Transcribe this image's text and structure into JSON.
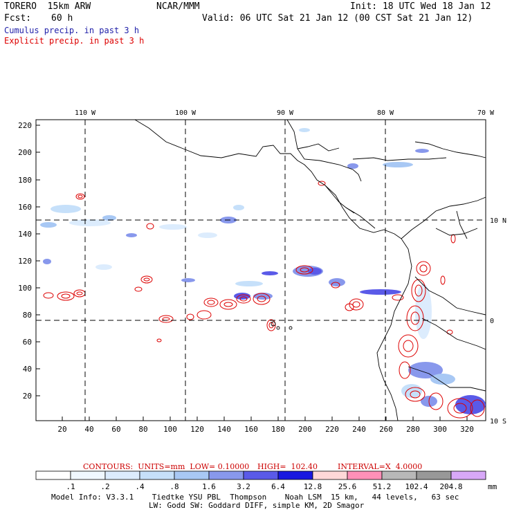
{
  "header": {
    "model": "TORERO  15km ARW",
    "org": "NCAR/MMM",
    "init": "Init: 18 UTC Wed 18 Jan 12",
    "fcst_label": "Fcst:",
    "fcst_value": "60 h",
    "valid": "Valid: 06 UTC Sat 21 Jan 12 (00 CST Sat 21 Jan 12)"
  },
  "legend": {
    "cumulus": "Cumulus precip. in past 3 h",
    "explicit": "Explicit precip. in past 3 h",
    "cumulus_color": "#2222aa",
    "explicit_color": "#dd0000"
  },
  "map": {
    "lon_labels": [
      "110 W",
      "100 W",
      "90 W",
      "80 W",
      "70 W"
    ],
    "lat_labels": [
      "10 N",
      "0",
      "10 S"
    ],
    "y_ticks": [
      "220",
      "200",
      "180",
      "160",
      "140",
      "120",
      "100",
      "80",
      "60",
      "40",
      "20"
    ],
    "x_ticks": [
      "20",
      "40",
      "60",
      "80",
      "100",
      "120",
      "140",
      "160",
      "180",
      "200",
      "220",
      "240",
      "260",
      "280",
      "300",
      "320"
    ]
  },
  "contours": {
    "units": "CONTOURS:  UNITS=mm  LOW= 0.10000",
    "high": "HIGH=  102.40",
    "interval": "INTERVAL=X  4.0000"
  },
  "colorbar": {
    "labels": [
      ".1",
      ".2",
      ".4",
      ".8",
      "1.6",
      "3.2",
      "6.4",
      "12.8",
      "25.6",
      "51.2",
      "102.4",
      "204.8"
    ],
    "unit": "mm",
    "colors": [
      "#ffffff",
      "#f0f8ff",
      "#dcecfd",
      "#c6e0fa",
      "#a8c8f4",
      "#8898ec",
      "#5a5ae8",
      "#1818e0",
      "#ffd8d8",
      "#ff90b8",
      "#b8b8b8",
      "#989898",
      "#d8a8f8"
    ]
  },
  "footer": {
    "line1": "Model Info: V3.3.1    Tiedtke YSU PBL  Thompson    Noah LSM  15 km,   44 levels,   63 sec",
    "line2": "LW: Godd SW: Goddard DIFF, simple KM, 2D Smagor"
  }
}
